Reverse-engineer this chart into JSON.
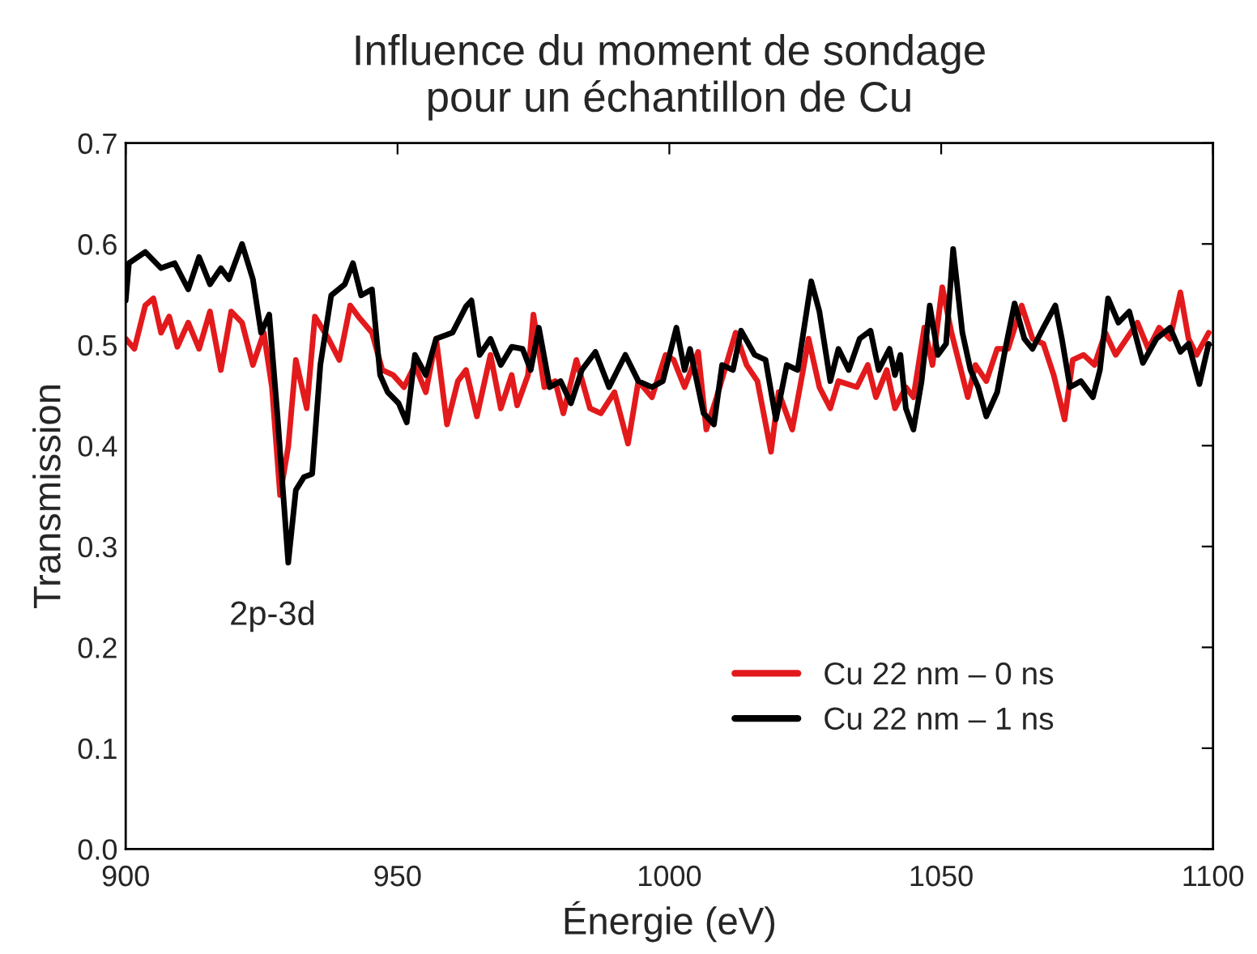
{
  "chart_data": {
    "type": "line",
    "title": "Influence du moment de sondage\npour un échantillon de Cu",
    "xlabel": "Énergie (eV)",
    "ylabel": "Transmission",
    "xlim": [
      900,
      1100
    ],
    "xticks": [
      900,
      950,
      1000,
      1050,
      1100
    ],
    "ylim": [
      0,
      0.7
    ],
    "yticks": [
      {
        "value": 0,
        "label": "0.0"
      },
      0.1,
      0.2,
      0.3,
      0.4,
      0.5,
      0.6,
      0.7
    ],
    "grid": false,
    "legend": "bottom right",
    "marker": "none",
    "line_style": "solid",
    "annotations": [
      "2p-3d"
    ],
    "series": [
      {
        "name": "Cu 22 nm – 0 ns",
        "color": "#e31a1c",
        "x": [
          900,
          901.6,
          903.6,
          905.1,
          906.5,
          908.0,
          909.5,
          911.5,
          913.5,
          915.5,
          917.5,
          919.4,
          921.4,
          923.4,
          925.4,
          926.9,
          928.4,
          929.9,
          931.3,
          933.3,
          934.8,
          937.3,
          939.3,
          941.3,
          942.8,
          945.3,
          947.2,
          949.2,
          951.2,
          953.2,
          955.2,
          957.1,
          959.1,
          961.1,
          962.6,
          964.6,
          967.1,
          969.0,
          971.0,
          972.0,
          974.0,
          975.0,
          977.0,
          979.0,
          980.5,
          982.9,
          985.4,
          987.4,
          989.9,
          992.4,
          994.3,
          996.8,
          999.3,
          1000.8,
          1002.8,
          1005.3,
          1006.8,
          1008.7,
          1012.2,
          1014.2,
          1016.2,
          1018.7,
          1020.1,
          1022.6,
          1024.6,
          1025.6,
          1027.6,
          1029.6,
          1031.1,
          1034.5,
          1036.5,
          1038.0,
          1040.0,
          1041.5,
          1043.5,
          1044.9,
          1046.9,
          1048.4,
          1050.2,
          1051.9,
          1053.4,
          1054.9,
          1056.3,
          1058.3,
          1060.3,
          1062.3,
          1064.8,
          1066.8,
          1068.8,
          1070.7,
          1072.7,
          1074.2,
          1076.2,
          1078.2,
          1080.2,
          1082.1,
          1084.1,
          1086.1,
          1088.1,
          1090.1,
          1092.1,
          1094.0,
          1095.5,
          1097.0,
          1099.2
        ],
        "values": [
          0.506,
          0.496,
          0.539,
          0.546,
          0.512,
          0.528,
          0.498,
          0.522,
          0.496,
          0.533,
          0.475,
          0.533,
          0.522,
          0.48,
          0.512,
          0.458,
          0.351,
          0.399,
          0.485,
          0.437,
          0.528,
          0.506,
          0.485,
          0.539,
          0.528,
          0.512,
          0.475,
          0.47,
          0.458,
          0.48,
          0.453,
          0.506,
          0.421,
          0.464,
          0.475,
          0.429,
          0.49,
          0.437,
          0.47,
          0.44,
          0.47,
          0.53,
          0.458,
          0.464,
          0.432,
          0.485,
          0.437,
          0.432,
          0.453,
          0.402,
          0.464,
          0.448,
          0.49,
          0.485,
          0.458,
          0.493,
          0.416,
          0.448,
          0.512,
          0.48,
          0.464,
          0.394,
          0.453,
          0.416,
          0.475,
          0.506,
          0.458,
          0.437,
          0.464,
          0.458,
          0.48,
          0.448,
          0.475,
          0.437,
          0.458,
          0.448,
          0.517,
          0.48,
          0.557,
          0.512,
          0.48,
          0.448,
          0.48,
          0.464,
          0.496,
          0.496,
          0.539,
          0.506,
          0.501,
          0.47,
          0.426,
          0.485,
          0.49,
          0.48,
          0.512,
          0.49,
          0.506,
          0.522,
          0.496,
          0.517,
          0.506,
          0.552,
          0.506,
          0.49,
          0.512
        ]
      },
      {
        "name": "Cu 22 nm – 1 ns",
        "color": "#000000",
        "x": [
          900,
          900.6,
          903.6,
          906.5,
          909.0,
          911.5,
          913.5,
          915.5,
          917.5,
          919.0,
          921.4,
          923.4,
          924.9,
          926.4,
          927.9,
          929.9,
          931.3,
          932.8,
          934.3,
          935.8,
          937.8,
          940.3,
          941.8,
          943.3,
          945.3,
          946.8,
          948.2,
          950.2,
          951.7,
          953.2,
          955.2,
          957.1,
          960.1,
          962.6,
          963.6,
          965.1,
          967.1,
          969.0,
          971.0,
          973.0,
          974.5,
          976.0,
          978.0,
          980.0,
          981.9,
          983.9,
          986.4,
          988.9,
          991.9,
          994.3,
          996.8,
          998.8,
          1001.3,
          1002.8,
          1003.8,
          1006.3,
          1008.2,
          1009.7,
          1011.7,
          1013.2,
          1015.7,
          1017.7,
          1019.6,
          1021.6,
          1023.6,
          1026.1,
          1027.6,
          1029.6,
          1031.1,
          1033.0,
          1035.0,
          1037.0,
          1038.5,
          1040.5,
          1041.5,
          1042.5,
          1043.5,
          1044.9,
          1046.4,
          1047.9,
          1049.4,
          1050.9,
          1052.2,
          1053.9,
          1055.4,
          1056.8,
          1058.3,
          1060.3,
          1061.8,
          1063.5,
          1065.3,
          1066.8,
          1068.8,
          1071.0,
          1072.2,
          1073.7,
          1075.7,
          1077.9,
          1079.2,
          1080.7,
          1082.6,
          1084.6,
          1087.1,
          1089.6,
          1092.1,
          1094.0,
          1095.5,
          1097.5,
          1099.2
        ],
        "values": [
          0.544,
          0.581,
          0.592,
          0.576,
          0.581,
          0.555,
          0.587,
          0.56,
          0.576,
          0.565,
          0.6,
          0.565,
          0.512,
          0.53,
          0.431,
          0.284,
          0.356,
          0.369,
          0.372,
          0.48,
          0.549,
          0.56,
          0.581,
          0.549,
          0.555,
          0.47,
          0.453,
          0.442,
          0.423,
          0.49,
          0.47,
          0.506,
          0.512,
          0.538,
          0.544,
          0.49,
          0.506,
          0.48,
          0.498,
          0.496,
          0.475,
          0.517,
          0.458,
          0.464,
          0.442,
          0.475,
          0.493,
          0.458,
          0.49,
          0.464,
          0.458,
          0.464,
          0.517,
          0.475,
          0.496,
          0.432,
          0.421,
          0.48,
          0.475,
          0.514,
          0.49,
          0.485,
          0.426,
          0.48,
          0.475,
          0.563,
          0.533,
          0.464,
          0.496,
          0.475,
          0.506,
          0.514,
          0.475,
          0.496,
          0.47,
          0.49,
          0.437,
          0.416,
          0.464,
          0.539,
          0.49,
          0.501,
          0.595,
          0.512,
          0.475,
          0.458,
          0.429,
          0.453,
          0.496,
          0.541,
          0.506,
          0.496,
          0.517,
          0.539,
          0.506,
          0.458,
          0.464,
          0.448,
          0.475,
          0.546,
          0.522,
          0.533,
          0.482,
          0.506,
          0.517,
          0.493,
          0.501,
          0.461,
          0.501
        ]
      }
    ]
  }
}
